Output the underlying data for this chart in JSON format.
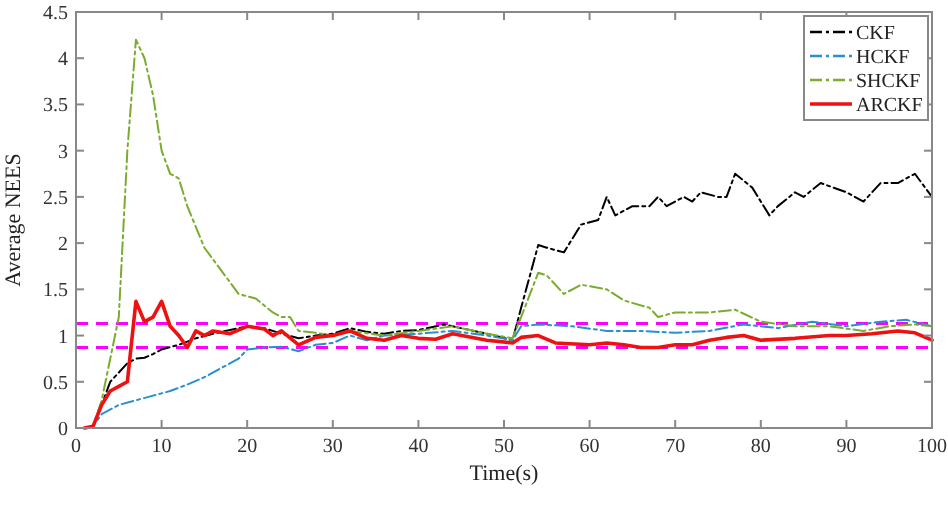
{
  "chart_data": {
    "type": "line",
    "xlabel": "Time(s)",
    "ylabel": "Average NEES",
    "xlim": [
      0,
      100
    ],
    "ylim": [
      0,
      4.5
    ],
    "xticks": [
      0,
      10,
      20,
      30,
      40,
      50,
      60,
      70,
      80,
      90,
      100
    ],
    "yticks": [
      0,
      0.5,
      1,
      1.5,
      2,
      2.5,
      3,
      3.5,
      4,
      4.5
    ],
    "grid": false,
    "legend": "top right",
    "marker": "none",
    "ref_lines": [
      {
        "axis": "y",
        "value": 1.13,
        "color": "#ff00ff",
        "line_style": "dashed"
      },
      {
        "axis": "y",
        "value": 0.87,
        "color": "#ff00ff",
        "line_style": "dashed"
      }
    ],
    "series": [
      {
        "name": "CKF",
        "color": "#000000",
        "line_style": "dashed",
        "x": [
          1,
          2,
          3,
          4,
          5,
          6,
          7,
          8,
          9,
          10,
          12,
          14,
          16,
          18,
          20,
          22,
          24,
          26,
          28,
          30,
          32,
          34,
          36,
          38,
          40,
          43,
          46,
          48,
          51,
          52,
          54,
          55,
          57,
          59,
          61,
          62,
          63,
          65,
          67,
          68,
          69,
          71,
          72,
          73,
          75,
          76,
          77,
          79,
          81,
          82,
          84,
          85,
          87,
          90,
          92,
          94,
          96,
          98,
          100
        ],
        "values": [
          0,
          0.02,
          0.25,
          0.5,
          0.6,
          0.7,
          0.75,
          0.76,
          0.8,
          0.85,
          0.9,
          0.97,
          1.02,
          1.06,
          1.1,
          1.08,
          1.02,
          0.97,
          1.0,
          1.02,
          1.08,
          1.04,
          1.02,
          1.05,
          1.06,
          1.12,
          1.06,
          1.02,
          0.95,
          1.3,
          1.98,
          1.95,
          1.9,
          2.2,
          2.25,
          2.5,
          2.3,
          2.4,
          2.4,
          2.5,
          2.4,
          2.5,
          2.45,
          2.55,
          2.5,
          2.5,
          2.75,
          2.6,
          2.3,
          2.4,
          2.55,
          2.5,
          2.65,
          2.55,
          2.45,
          2.65,
          2.65,
          2.75,
          2.5
        ]
      },
      {
        "name": "HCKF",
        "color": "#2a8fd0",
        "line_style": "dashed",
        "x": [
          1,
          2,
          3,
          5,
          7,
          9,
          11,
          13,
          15,
          17,
          19,
          20,
          22,
          24,
          26,
          28,
          30,
          32,
          34,
          36,
          40,
          44,
          48,
          51,
          52,
          54,
          58,
          62,
          66,
          70,
          74,
          78,
          82,
          86,
          90,
          94,
          97,
          100
        ],
        "values": [
          0,
          0.02,
          0.15,
          0.25,
          0.3,
          0.35,
          0.4,
          0.47,
          0.55,
          0.65,
          0.75,
          0.85,
          0.87,
          0.88,
          0.83,
          0.9,
          0.92,
          1.0,
          0.95,
          1.0,
          1.02,
          1.05,
          1.0,
          0.95,
          1.1,
          1.12,
          1.1,
          1.05,
          1.05,
          1.03,
          1.05,
          1.12,
          1.08,
          1.15,
          1.1,
          1.15,
          1.17,
          1.1
        ]
      },
      {
        "name": "SHCKF",
        "color": "#7aac2e",
        "line_style": "dashed",
        "x": [
          1,
          2,
          3,
          5,
          6,
          7,
          8,
          9,
          10,
          11,
          12,
          13,
          15,
          17,
          19,
          21,
          23,
          24,
          25,
          26,
          28,
          30,
          32,
          36,
          40,
          44,
          48,
          51,
          52,
          54,
          55,
          57,
          59,
          62,
          64,
          67,
          68,
          70,
          74,
          77,
          80,
          84,
          88,
          92,
          95,
          98,
          100
        ],
        "values": [
          0,
          0.02,
          0.3,
          1.2,
          3.0,
          4.2,
          4.0,
          3.6,
          3.0,
          2.75,
          2.7,
          2.4,
          1.95,
          1.7,
          1.45,
          1.4,
          1.25,
          1.2,
          1.2,
          1.05,
          1.03,
          1.0,
          1.05,
          1.0,
          1.05,
          1.1,
          1.02,
          0.97,
          1.2,
          1.68,
          1.65,
          1.45,
          1.55,
          1.5,
          1.38,
          1.3,
          1.2,
          1.25,
          1.25,
          1.28,
          1.15,
          1.1,
          1.1,
          1.05,
          1.1,
          1.12,
          1.1
        ]
      },
      {
        "name": "ARCKF",
        "color": "#ee1111",
        "line_style": "solid",
        "x": [
          1,
          2,
          3,
          4,
          5,
          6,
          7,
          8,
          9,
          10,
          11,
          12,
          13,
          14,
          15,
          16,
          18,
          20,
          22,
          23,
          24,
          26,
          28,
          30,
          32,
          34,
          36,
          38,
          40,
          42,
          44,
          48,
          51,
          52,
          54,
          56,
          60,
          62,
          64,
          66,
          68,
          70,
          72,
          74,
          76,
          78,
          80,
          84,
          88,
          90,
          93,
          96,
          98,
          100
        ],
        "values": [
          0,
          0.02,
          0.25,
          0.4,
          0.45,
          0.5,
          1.37,
          1.15,
          1.2,
          1.37,
          1.1,
          1.0,
          0.87,
          1.05,
          1.0,
          1.05,
          1.02,
          1.1,
          1.07,
          1.0,
          1.05,
          0.9,
          0.98,
          1.0,
          1.05,
          0.97,
          0.95,
          1.0,
          0.97,
          0.96,
          1.02,
          0.95,
          0.92,
          0.98,
          1.0,
          0.92,
          0.9,
          0.92,
          0.9,
          0.87,
          0.87,
          0.9,
          0.9,
          0.95,
          0.98,
          1.0,
          0.95,
          0.97,
          1.0,
          1.0,
          1.02,
          1.05,
          1.03,
          0.95
        ]
      }
    ]
  }
}
